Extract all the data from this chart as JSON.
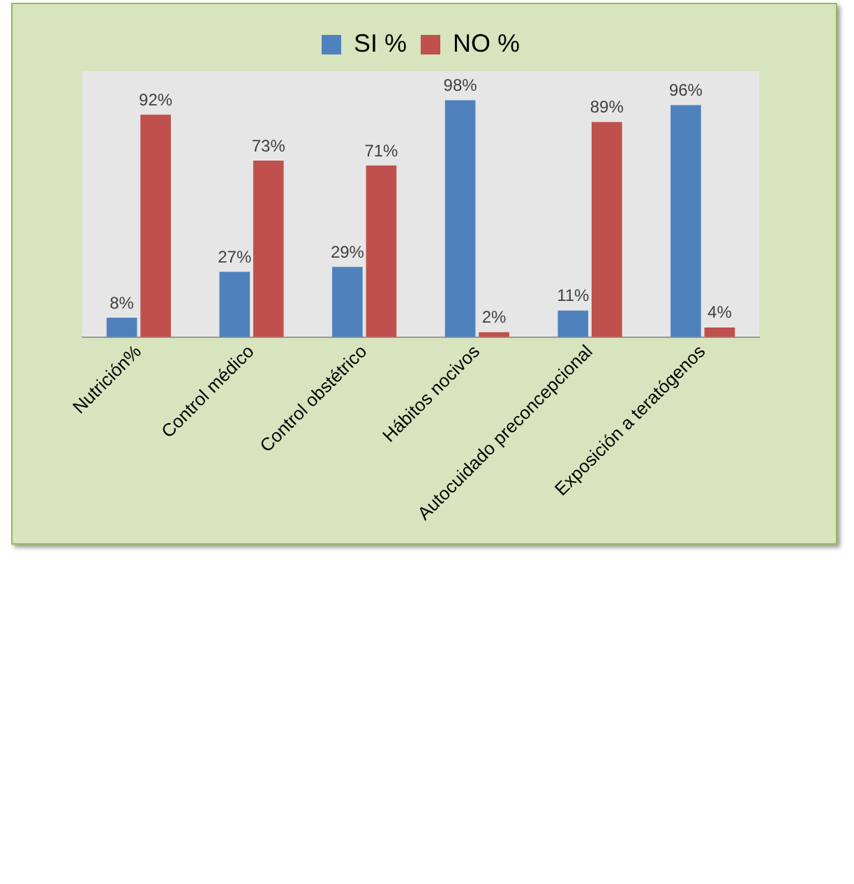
{
  "chart_data": {
    "type": "bar",
    "categories": [
      "Nutrición%",
      "Control médico",
      "Control obstétrico",
      "Hábitos nocivos",
      "Autocuidado preconcepcional",
      "Exposición a teratógenos"
    ],
    "series": [
      {
        "name": "SI %",
        "color": "#4f81bd",
        "values": [
          8,
          27,
          29,
          98,
          11,
          96
        ],
        "value_labels": [
          "8%",
          "27%",
          "29%",
          "98%",
          "11%",
          "96%"
        ]
      },
      {
        "name": "NO %",
        "color": "#c0504d",
        "values": [
          92,
          73,
          71,
          2,
          89,
          4
        ],
        "value_labels": [
          "92%",
          "73%",
          "71%",
          "2%",
          "89%",
          "4%"
        ]
      }
    ],
    "legend": "top",
    "grid": false
  }
}
